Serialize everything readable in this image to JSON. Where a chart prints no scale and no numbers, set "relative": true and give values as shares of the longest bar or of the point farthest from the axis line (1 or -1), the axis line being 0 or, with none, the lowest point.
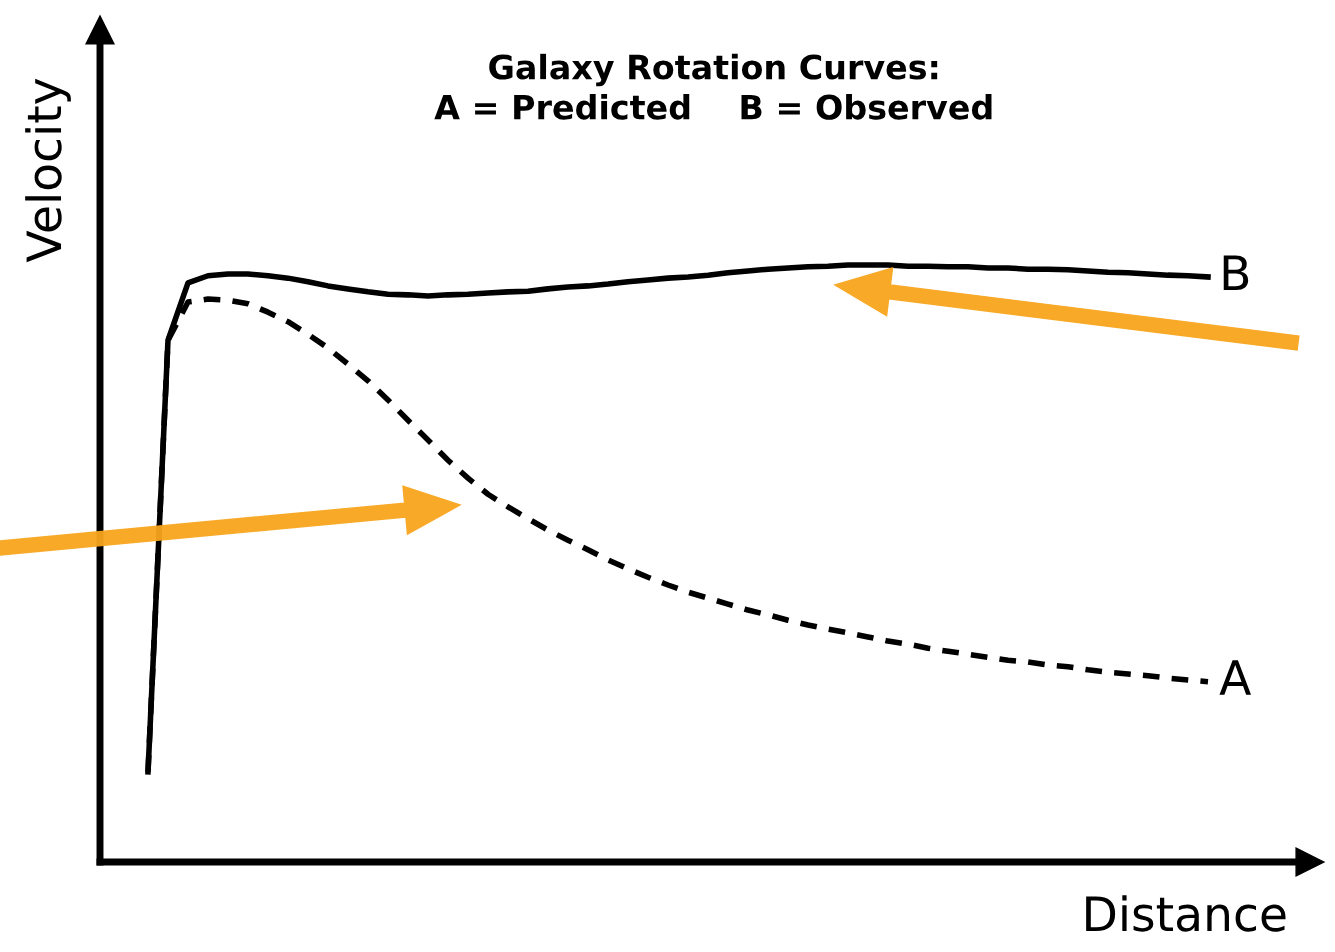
{
  "chart_data": {
    "type": "line",
    "title": "Galaxy Rotation Curves:\nA = Predicted    B = Observed",
    "xlabel": "Distance",
    "ylabel": "Velocity",
    "relative": true,
    "legend": false,
    "marker": "none",
    "categories": [
      null,
      null,
      null,
      null,
      null,
      null,
      null,
      null,
      null,
      null,
      null,
      null,
      null,
      null,
      null,
      null,
      null,
      null,
      null,
      null,
      null,
      null,
      null,
      null,
      null,
      null,
      null,
      null,
      null,
      null,
      null,
      null,
      null,
      null,
      null,
      null,
      null,
      null,
      null,
      null,
      null,
      null,
      null,
      null,
      null,
      null,
      null,
      null,
      null,
      null,
      null,
      null,
      null,
      null
    ],
    "series": [
      {
        "name": "B",
        "color": "#000000",
        "line_style": "solid",
        "values": [
          0.151,
          0.874,
          0.97,
          0.982,
          0.985,
          0.985,
          0.982,
          0.978,
          0.972,
          0.965,
          0.96,
          0.955,
          0.951,
          0.95,
          0.948,
          0.95,
          0.951,
          0.953,
          0.955,
          0.956,
          0.96,
          0.963,
          0.965,
          0.968,
          0.972,
          0.975,
          0.978,
          0.98,
          0.983,
          0.987,
          0.99,
          0.993,
          0.995,
          0.997,
          0.998,
          1.0,
          1.0,
          1.0,
          0.998,
          0.998,
          0.997,
          0.997,
          0.995,
          0.995,
          0.993,
          0.993,
          0.992,
          0.99,
          0.988,
          0.987,
          0.985,
          0.983,
          0.982,
          0.98
        ]
      },
      {
        "name": "A",
        "color": "#000000",
        "line_style": "dashed",
        "values": [
          0.151,
          0.874,
          0.938,
          0.943,
          0.941,
          0.935,
          0.921,
          0.905,
          0.884,
          0.861,
          0.834,
          0.806,
          0.774,
          0.74,
          0.707,
          0.673,
          0.643,
          0.616,
          0.595,
          0.575,
          0.556,
          0.539,
          0.523,
          0.506,
          0.491,
          0.477,
          0.464,
          0.452,
          0.442,
          0.432,
          0.422,
          0.414,
          0.405,
          0.397,
          0.39,
          0.384,
          0.377,
          0.37,
          0.365,
          0.358,
          0.353,
          0.348,
          0.343,
          0.338,
          0.335,
          0.33,
          0.327,
          0.322,
          0.318,
          0.315,
          0.312,
          0.308,
          0.305,
          0.302
        ]
      }
    ]
  }
}
